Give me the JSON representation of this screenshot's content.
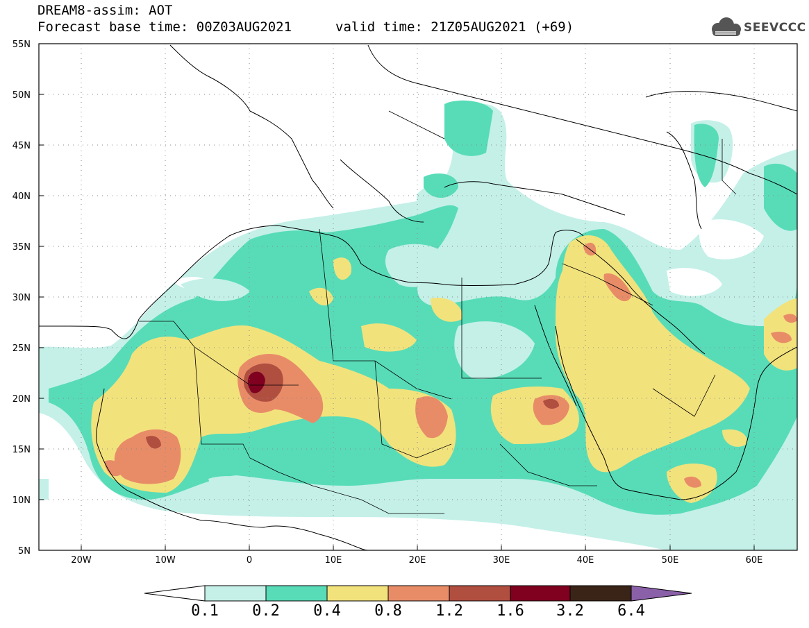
{
  "title": {
    "line1": "DREAM8-assim: AOT",
    "line2": "Forecast base time: 00Z03AUG2021",
    "valid": "valid time: 21Z05AUG2021 (+69)"
  },
  "logo": {
    "text": "SEEVCCC",
    "icon": "cloud-icon"
  },
  "map": {
    "projection": "equirectangular",
    "lon_range": [
      -25,
      65
    ],
    "lat_range": [
      5,
      55
    ],
    "lon_ticks": [
      "20W",
      "10W",
      "0",
      "10E",
      "20E",
      "30E",
      "40E",
      "50E",
      "60E"
    ],
    "lat_ticks": [
      "5N",
      "10N",
      "15N",
      "20N",
      "25N",
      "30N",
      "35N",
      "40N",
      "45N",
      "50N",
      "55N"
    ],
    "grid": "dotted"
  },
  "colorbar": {
    "levels": [
      "0.1",
      "0.2",
      "0.4",
      "0.8",
      "1.2",
      "1.6",
      "3.2",
      "6.4"
    ],
    "colors": [
      "#ffffff",
      "#c4f0e8",
      "#58dcb8",
      "#f2e27c",
      "#e88c68",
      "#b04e40",
      "#800020",
      "#3a2418",
      "#8a60a8"
    ]
  }
}
